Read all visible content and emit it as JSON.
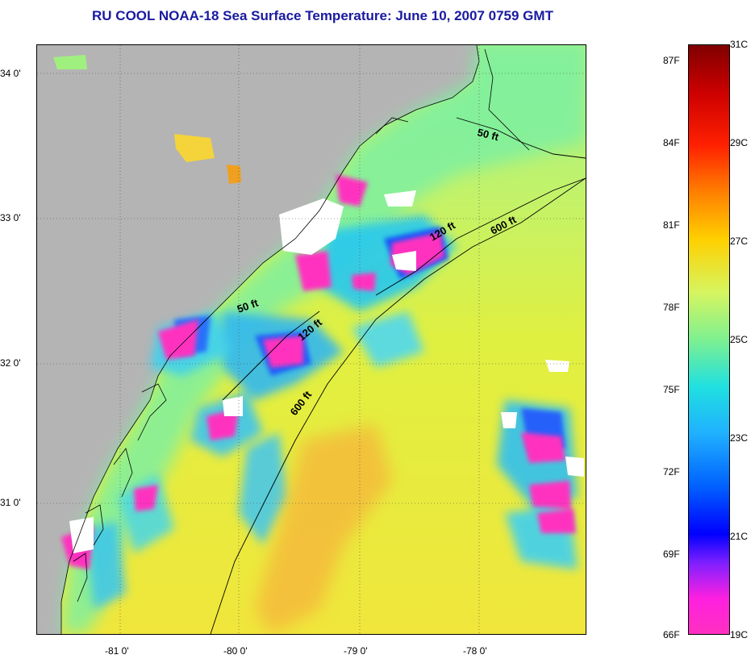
{
  "title": "RU COOL  NOAA-18  Sea Surface Temperature:  June 10, 2007 0759 GMT",
  "lat_labels": [
    "34 0'",
    "33 0'",
    "32 0'",
    "31 0'"
  ],
  "lon_labels": [
    "-81 0'",
    "-80 0'",
    "-79 0'",
    "-78 0'"
  ],
  "isobaths": {
    "b50_a": "50 ft",
    "b50_b": "50 ft",
    "b120_a": "120 ft",
    "b120_b": "120 ft",
    "b600_a": "600 ft",
    "b600_b": "600 ft"
  },
  "colorbar": {
    "celsius": [
      "31C",
      "29C",
      "27C",
      "25C",
      "23C",
      "21C",
      "19C"
    ],
    "fahrenheit": [
      "87F",
      "84F",
      "81F",
      "78F",
      "75F",
      "72F",
      "69F",
      "66F"
    ]
  },
  "colors": {
    "land": "#b4b4b4",
    "cloud": "#ffffff",
    "warm": "#f5d33a",
    "mid": "#d6f560",
    "cool": "#00e0e0",
    "cold": "#0030ff",
    "coldest": "#ff30c0",
    "title": "#1a1aa0"
  }
}
